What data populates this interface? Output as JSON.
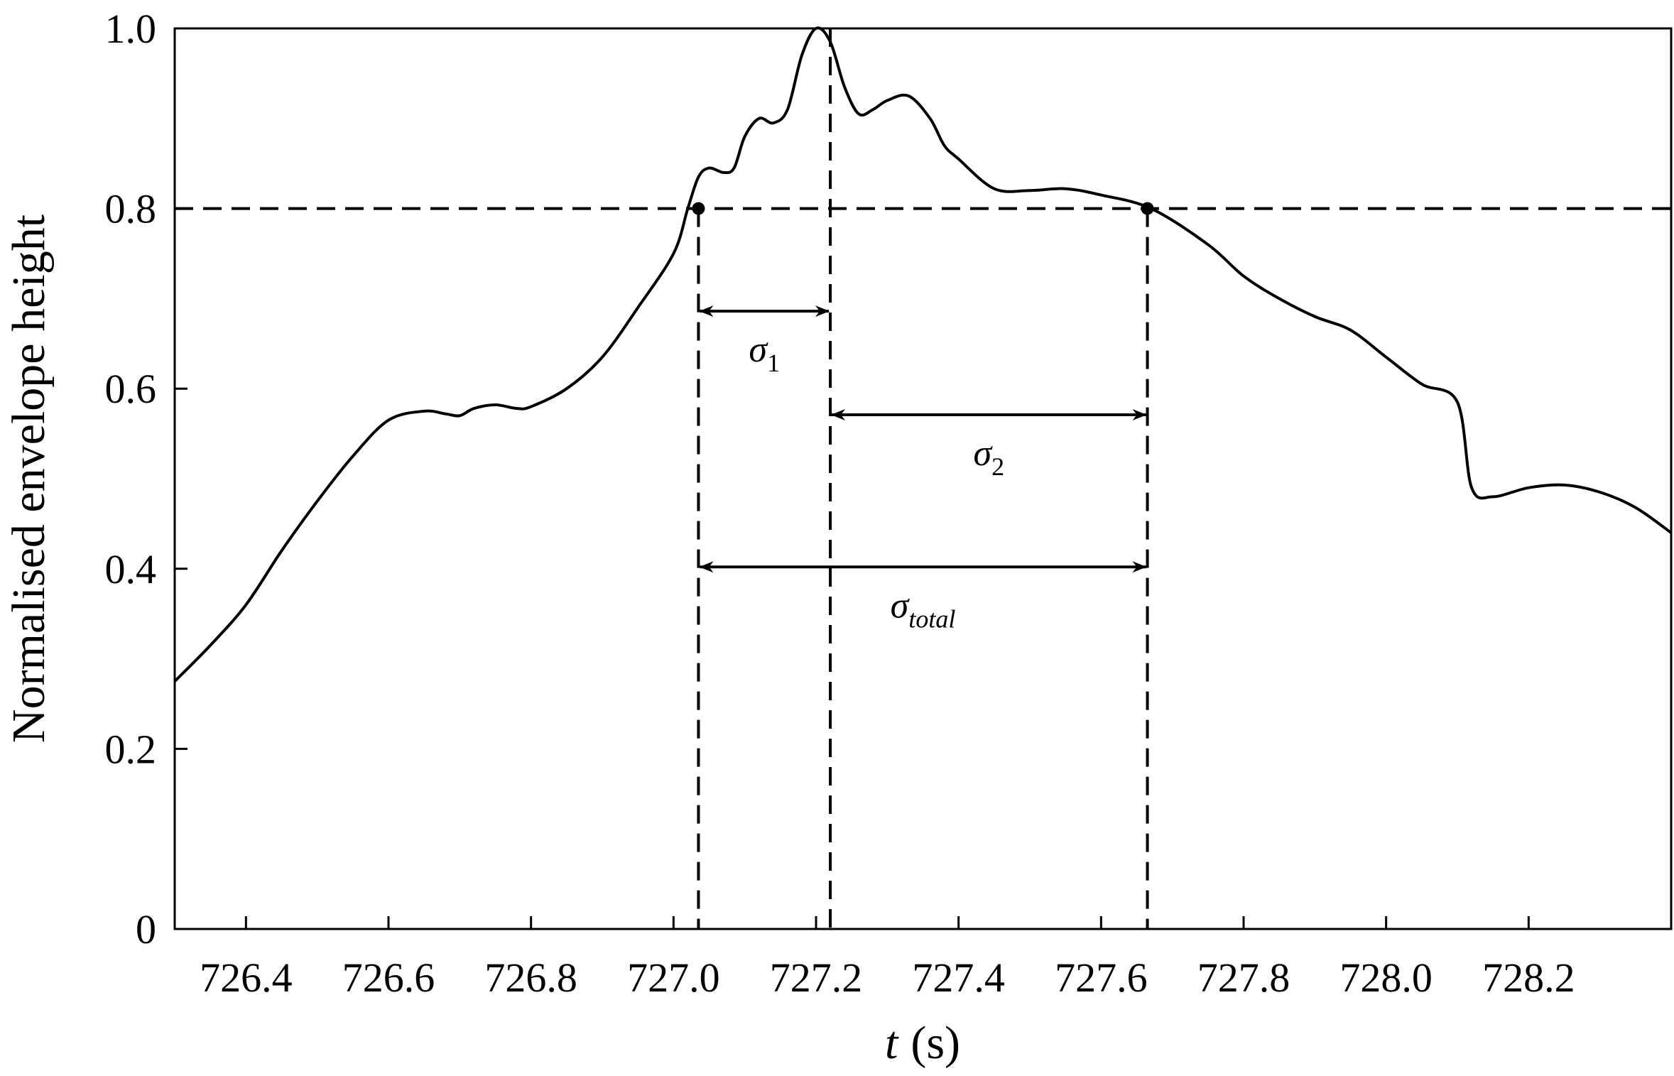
{
  "chart_data": {
    "type": "line",
    "xlabel": {
      "symbol": "t",
      "unit": "(s)"
    },
    "ylabel": "Normalised envelope height",
    "xlim": [
      726.3,
      728.4
    ],
    "ylim": [
      0,
      1.0
    ],
    "x_ticks": [
      726.4,
      726.6,
      726.8,
      727.0,
      727.2,
      727.4,
      727.6,
      727.8,
      728.0,
      728.2
    ],
    "x_tick_labels": [
      "726.4",
      "726.6",
      "726.8",
      "727.0",
      "727.2",
      "727.4",
      "727.6",
      "727.8",
      "728.0",
      "728.2"
    ],
    "y_ticks": [
      0,
      0.2,
      0.4,
      0.6,
      0.8,
      1.0
    ],
    "y_tick_labels": [
      "0",
      "0.2",
      "0.4",
      "0.6",
      "0.8",
      "1.0"
    ],
    "grid": false,
    "series": [
      {
        "color": "#000000",
        "x": [
          726.3,
          726.35,
          726.4,
          726.45,
          726.5,
          726.55,
          726.6,
          726.65,
          726.68,
          726.7,
          726.72,
          726.75,
          726.78,
          726.8,
          726.85,
          726.9,
          726.95,
          727.0,
          727.02,
          727.035,
          727.05,
          727.07,
          727.085,
          727.1,
          727.12,
          727.14,
          727.16,
          727.18,
          727.2,
          727.22,
          727.24,
          727.26,
          727.28,
          727.3,
          727.33,
          727.36,
          727.38,
          727.4,
          727.45,
          727.5,
          727.55,
          727.6,
          727.67,
          727.75,
          727.8,
          727.85,
          727.9,
          727.95,
          728.0,
          728.05,
          728.1,
          728.12,
          728.15,
          728.2,
          728.25,
          728.3,
          728.35,
          728.4
        ],
        "y": [
          0.275,
          0.315,
          0.36,
          0.42,
          0.475,
          0.525,
          0.565,
          0.575,
          0.572,
          0.57,
          0.578,
          0.582,
          0.578,
          0.58,
          0.6,
          0.635,
          0.69,
          0.75,
          0.8,
          0.835,
          0.845,
          0.84,
          0.845,
          0.88,
          0.9,
          0.895,
          0.91,
          0.97,
          1.0,
          0.985,
          0.935,
          0.905,
          0.91,
          0.92,
          0.925,
          0.9,
          0.87,
          0.855,
          0.822,
          0.82,
          0.822,
          0.815,
          0.8,
          0.76,
          0.725,
          0.7,
          0.68,
          0.665,
          0.635,
          0.605,
          0.585,
          0.49,
          0.48,
          0.49,
          0.493,
          0.485,
          0.468,
          0.44
        ]
      }
    ],
    "reference_lines": {
      "horizontal_y": 0.8,
      "vertical_x": [
        727.035,
        727.22,
        727.665
      ]
    },
    "markers": [
      {
        "x": 727.035,
        "y": 0.8
      },
      {
        "x": 727.665,
        "y": 0.8
      }
    ],
    "annotations": [
      {
        "symbol": "σ",
        "subscript": "1",
        "from": 727.035,
        "to": 727.22,
        "arrow_y": 0.686,
        "label_y": 0.63
      },
      {
        "symbol": "σ",
        "subscript": "2",
        "from": 727.22,
        "to": 727.665,
        "arrow_y": 0.571,
        "label_y": 0.515
      },
      {
        "symbol": "σ",
        "subscript": "total",
        "from": 727.035,
        "to": 727.665,
        "arrow_y": 0.402,
        "label_y": 0.346
      }
    ]
  }
}
